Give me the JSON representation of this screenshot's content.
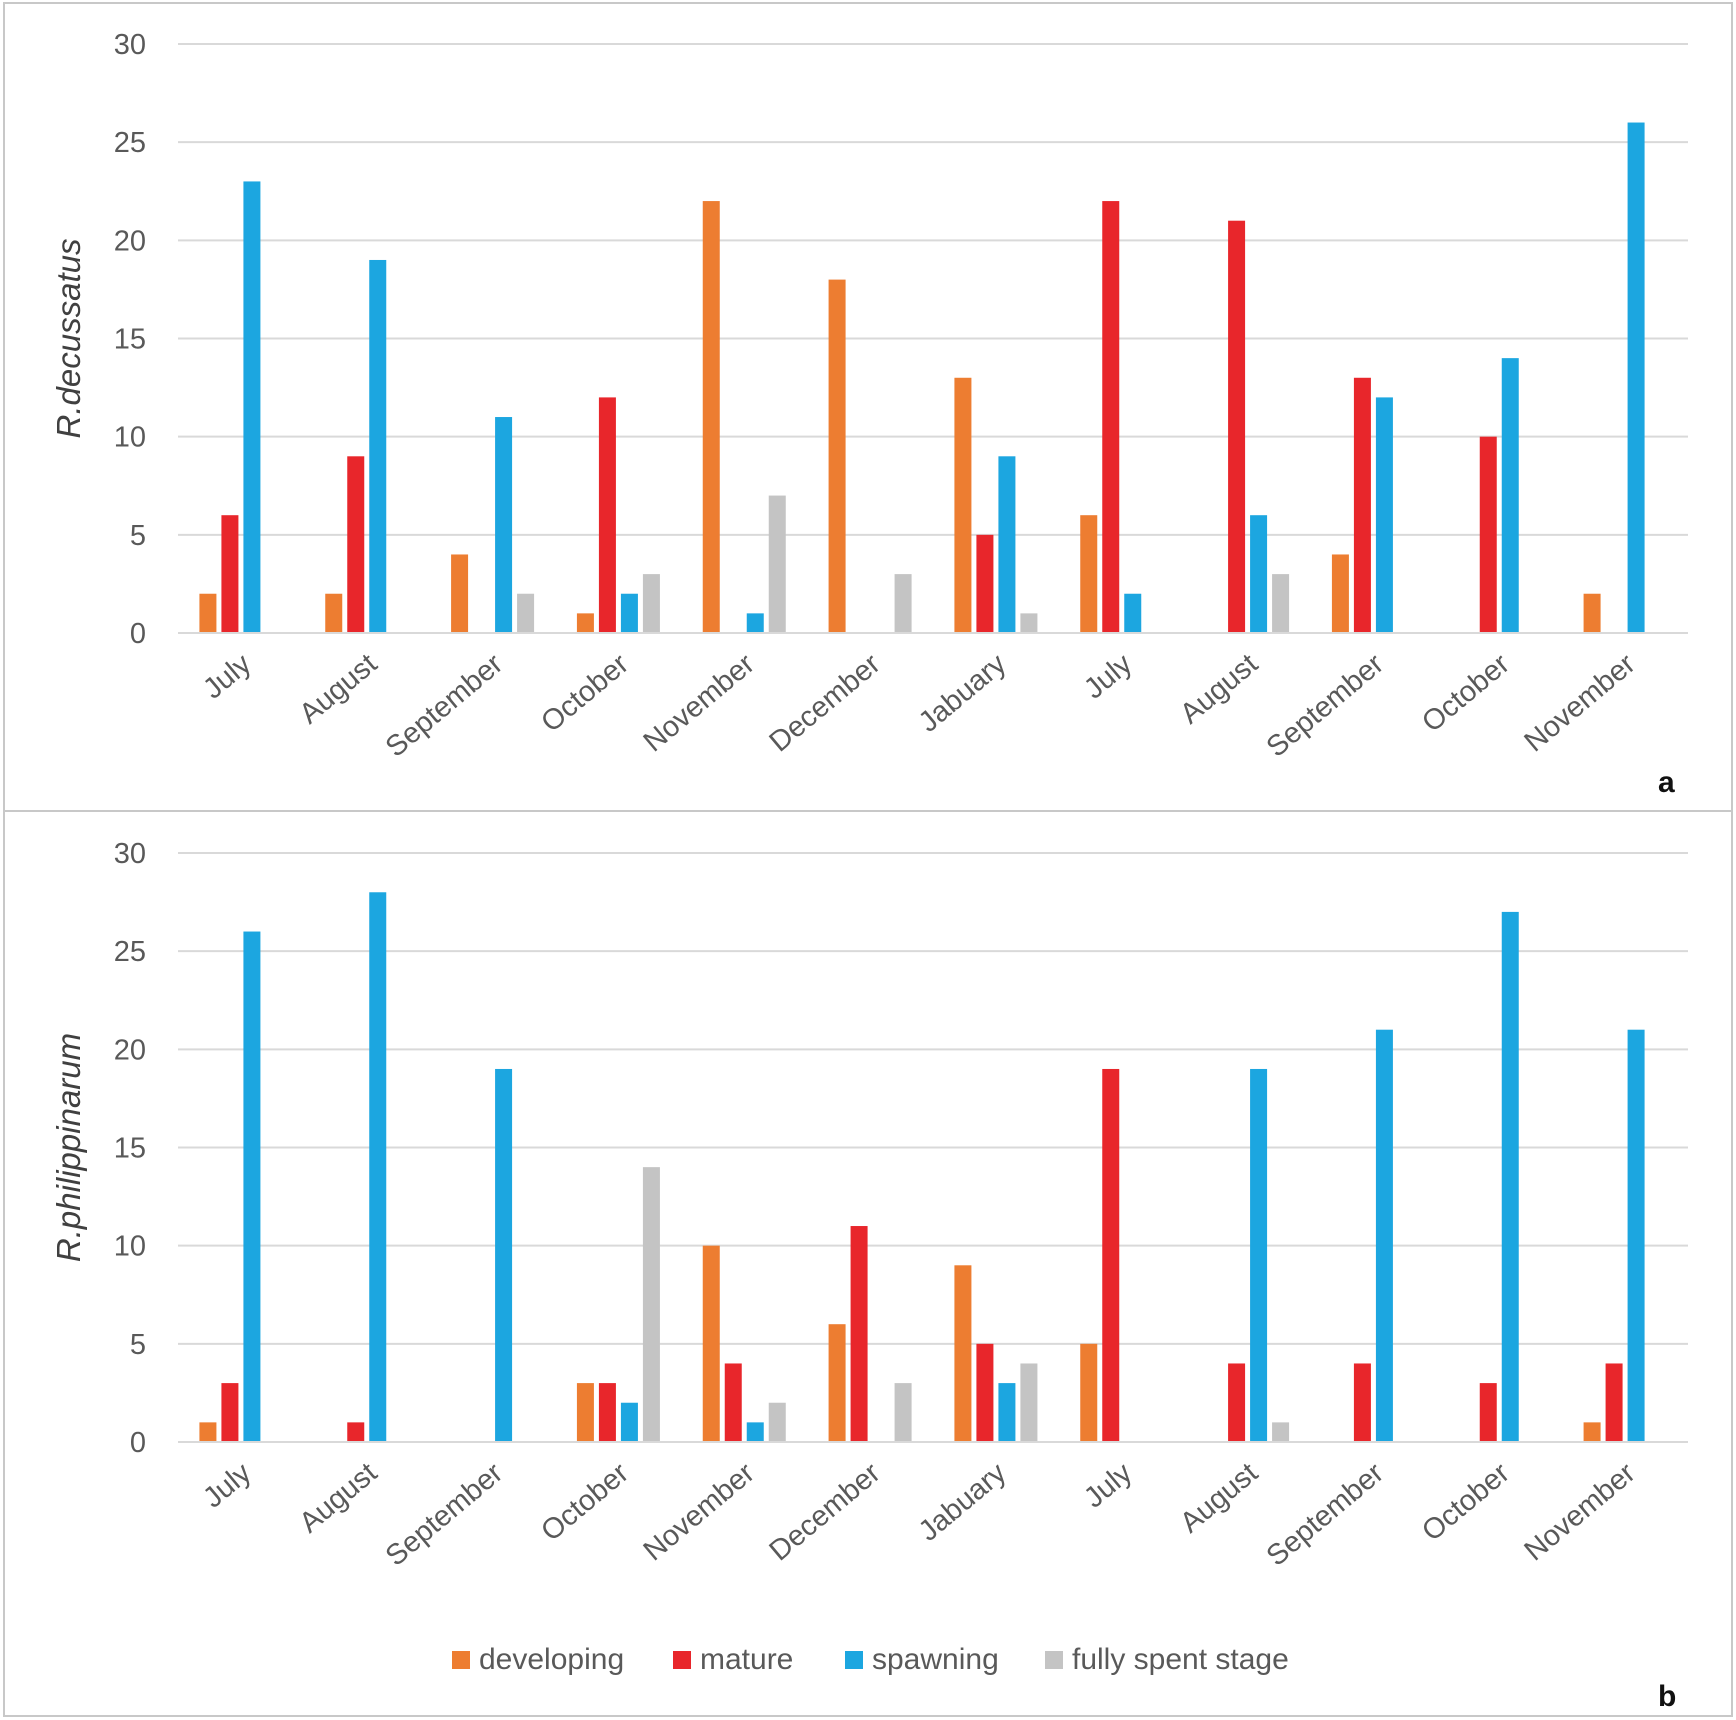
{
  "legend": [
    {
      "label": "developing",
      "color": "#ED7D31"
    },
    {
      "label": "mature",
      "color": "#E8262B"
    },
    {
      "label": "spawning",
      "color": "#1CA6E0"
    },
    {
      "label": "fully spent stage",
      "color": "#C4C4C4"
    }
  ],
  "chart_data": [
    {
      "type": "bar",
      "panel": "a",
      "ylabel": "R.decussatus",
      "xlabel": "",
      "ylim": [
        0,
        30
      ],
      "yticks": [
        0,
        5,
        10,
        15,
        20,
        25,
        30
      ],
      "grid": true,
      "categories": [
        "July",
        "August",
        "September",
        "October",
        "November",
        "December",
        "Jabuary",
        "July",
        "August",
        "September",
        "October",
        "November"
      ],
      "series": [
        {
          "name": "developing",
          "values": [
            2,
            2,
            4,
            1,
            22,
            18,
            13,
            6,
            0,
            4,
            0,
            2
          ]
        },
        {
          "name": "mature",
          "values": [
            6,
            9,
            0,
            12,
            0,
            0,
            5,
            22,
            21,
            13,
            10,
            0
          ]
        },
        {
          "name": "spawning",
          "values": [
            23,
            19,
            11,
            2,
            1,
            0,
            9,
            2,
            6,
            12,
            14,
            26
          ]
        },
        {
          "name": "fully spent stage",
          "values": [
            0,
            0,
            2,
            3,
            7,
            3,
            1,
            0,
            3,
            0,
            0,
            0
          ]
        }
      ]
    },
    {
      "type": "bar",
      "panel": "b",
      "ylabel": "R.philippinarum",
      "xlabel": "",
      "ylim": [
        0,
        30
      ],
      "yticks": [
        0,
        5,
        10,
        15,
        20,
        25,
        30
      ],
      "grid": true,
      "legend_position": "bottom",
      "categories": [
        "July",
        "August",
        "September",
        "October",
        "November",
        "December",
        "Jabuary",
        "July",
        "August",
        "September",
        "October",
        "November"
      ],
      "series": [
        {
          "name": "developing",
          "values": [
            1,
            0,
            0,
            3,
            10,
            6,
            9,
            5,
            0,
            0,
            0,
            1
          ]
        },
        {
          "name": "mature",
          "values": [
            3,
            1,
            0,
            3,
            4,
            11,
            5,
            19,
            4,
            4,
            3,
            4
          ]
        },
        {
          "name": "spawning",
          "values": [
            26,
            28,
            19,
            2,
            1,
            0,
            3,
            0,
            19,
            21,
            27,
            21
          ]
        },
        {
          "name": "fully spent stage",
          "values": [
            0,
            0,
            0,
            14,
            2,
            3,
            4,
            0,
            1,
            0,
            0,
            0
          ]
        }
      ]
    }
  ]
}
